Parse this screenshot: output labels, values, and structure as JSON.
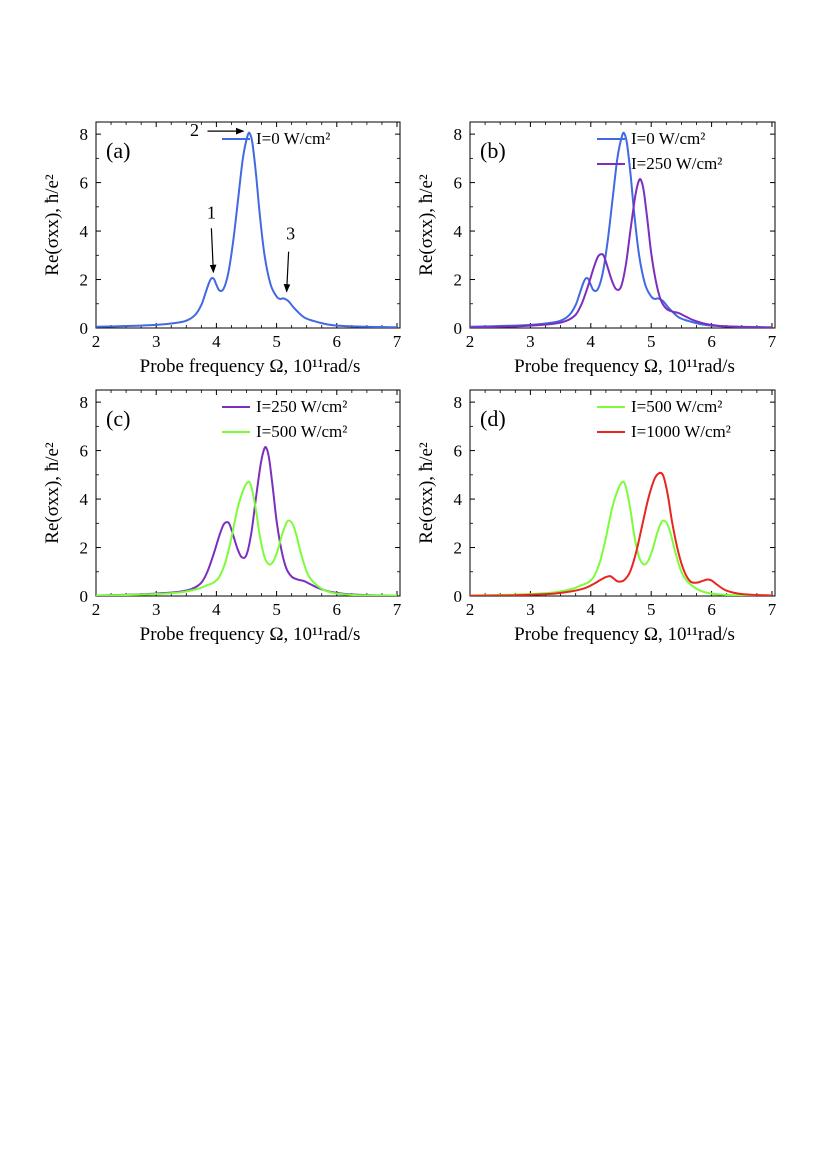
{
  "chart_data": [
    {
      "type": "line",
      "panel_label": "(a)",
      "xlabel": "Probe frequency Ω,  10¹¹rad/s",
      "ylabel": "Re(σxx),  ħ/e²",
      "xlim": [
        2,
        7.05
      ],
      "ylim": [
        0,
        8.5
      ],
      "xticks": [
        "2",
        "3",
        "4",
        "5",
        "6",
        "7"
      ],
      "yticks": [
        "0",
        "2",
        "4",
        "6",
        "8"
      ],
      "legend_position": "top-right",
      "series": [
        {
          "name": "I=0 W/cm²",
          "intensity": "0",
          "color": "#4169E1",
          "x": [
            2.0,
            2.5,
            3.0,
            3.3,
            3.5,
            3.65,
            3.75,
            3.82,
            3.88,
            3.92,
            3.96,
            4.0,
            4.05,
            4.12,
            4.2,
            4.28,
            4.36,
            4.44,
            4.52,
            4.56,
            4.6,
            4.66,
            4.72,
            4.8,
            4.9,
            5.0,
            5.06,
            5.1,
            5.14,
            5.2,
            5.3,
            5.45,
            5.6,
            5.8,
            6.0,
            6.5,
            7.0
          ],
          "y": [
            0.05,
            0.08,
            0.13,
            0.2,
            0.3,
            0.55,
            0.95,
            1.45,
            1.88,
            2.05,
            2.02,
            1.78,
            1.55,
            1.62,
            2.3,
            3.6,
            5.3,
            7.0,
            7.95,
            8.0,
            7.6,
            6.3,
            4.7,
            3.0,
            1.8,
            1.3,
            1.2,
            1.22,
            1.2,
            1.1,
            0.8,
            0.45,
            0.3,
            0.17,
            0.1,
            0.05,
            0.03
          ]
        }
      ],
      "annotations": [
        {
          "text": "1",
          "x": 3.95,
          "y": 2.05
        },
        {
          "text": "2",
          "x": 4.55,
          "y": 8.0
        },
        {
          "text": "3",
          "x": 5.15,
          "y": 1.25
        }
      ]
    },
    {
      "type": "line",
      "panel_label": "(b)",
      "xlabel": "Probe frequency Ω,  10¹¹rad/s",
      "ylabel": "Re(σxx),  ħ/e²",
      "xlim": [
        2,
        7.05
      ],
      "ylim": [
        0,
        8.5
      ],
      "xticks": [
        "2",
        "3",
        "4",
        "5",
        "6",
        "7"
      ],
      "yticks": [
        "0",
        "2",
        "4",
        "6",
        "8"
      ],
      "legend_position": "top-right",
      "series": [
        {
          "name": "I=0 W/cm²",
          "intensity": "0",
          "color": "#4169E1",
          "x": [
            2.0,
            2.5,
            3.0,
            3.3,
            3.5,
            3.65,
            3.75,
            3.82,
            3.88,
            3.92,
            3.96,
            4.0,
            4.05,
            4.12,
            4.2,
            4.28,
            4.36,
            4.44,
            4.52,
            4.56,
            4.6,
            4.66,
            4.72,
            4.8,
            4.9,
            5.0,
            5.06,
            5.1,
            5.14,
            5.2,
            5.3,
            5.45,
            5.6,
            5.8,
            6.0,
            6.5,
            7.0
          ],
          "y": [
            0.05,
            0.08,
            0.13,
            0.2,
            0.3,
            0.55,
            0.95,
            1.45,
            1.88,
            2.05,
            2.02,
            1.78,
            1.55,
            1.62,
            2.3,
            3.6,
            5.3,
            7.0,
            7.95,
            8.0,
            7.6,
            6.3,
            4.7,
            3.0,
            1.8,
            1.3,
            1.2,
            1.22,
            1.2,
            1.1,
            0.8,
            0.45,
            0.3,
            0.17,
            0.1,
            0.05,
            0.03
          ]
        },
        {
          "name": "I=250 W/cm²",
          "intensity": "250",
          "color": "#7B2FBE",
          "x": [
            2.0,
            2.5,
            3.0,
            3.4,
            3.6,
            3.75,
            3.85,
            3.95,
            4.05,
            4.12,
            4.18,
            4.22,
            4.28,
            4.35,
            4.42,
            4.5,
            4.58,
            4.66,
            4.74,
            4.8,
            4.84,
            4.88,
            4.94,
            5.0,
            5.08,
            5.16,
            5.25,
            5.35,
            5.45,
            5.55,
            5.7,
            5.9,
            6.2,
            6.6,
            7.0
          ],
          "y": [
            0.02,
            0.05,
            0.1,
            0.18,
            0.3,
            0.55,
            1.0,
            1.7,
            2.5,
            2.95,
            3.05,
            2.95,
            2.5,
            1.95,
            1.6,
            1.7,
            2.6,
            4.1,
            5.5,
            6.1,
            6.05,
            5.6,
            4.4,
            3.1,
            1.9,
            1.15,
            0.8,
            0.68,
            0.62,
            0.5,
            0.32,
            0.17,
            0.07,
            0.03,
            0.02
          ]
        }
      ]
    },
    {
      "type": "line",
      "panel_label": "(c)",
      "xlabel": "Probe frequency Ω,  10¹¹rad/s",
      "ylabel": "Re(σxx),  ħ/e²",
      "xlim": [
        2,
        7.05
      ],
      "ylim": [
        0,
        8.5
      ],
      "xticks": [
        "2",
        "3",
        "4",
        "5",
        "6",
        "7"
      ],
      "yticks": [
        "0",
        "2",
        "4",
        "6",
        "8"
      ],
      "legend_position": "top-right",
      "series": [
        {
          "name": "I=250 W/cm²",
          "intensity": "250",
          "color": "#7B2FBE",
          "x": [
            2.0,
            2.5,
            3.0,
            3.4,
            3.6,
            3.75,
            3.85,
            3.95,
            4.05,
            4.12,
            4.18,
            4.22,
            4.28,
            4.35,
            4.42,
            4.5,
            4.58,
            4.66,
            4.74,
            4.8,
            4.84,
            4.88,
            4.94,
            5.0,
            5.08,
            5.16,
            5.25,
            5.35,
            5.45,
            5.55,
            5.7,
            5.9,
            6.2,
            6.6,
            7.0
          ],
          "y": [
            0.02,
            0.05,
            0.1,
            0.18,
            0.3,
            0.55,
            1.0,
            1.7,
            2.5,
            2.95,
            3.05,
            2.95,
            2.5,
            1.95,
            1.6,
            1.7,
            2.6,
            4.1,
            5.5,
            6.1,
            6.05,
            5.6,
            4.4,
            3.1,
            1.9,
            1.15,
            0.8,
            0.68,
            0.62,
            0.5,
            0.32,
            0.17,
            0.07,
            0.03,
            0.02
          ]
        },
        {
          "name": "I=500 W/cm²",
          "intensity": "500",
          "color": "#7CFC3A",
          "x": [
            2.0,
            2.5,
            3.0,
            3.4,
            3.7,
            3.85,
            3.95,
            4.05,
            4.15,
            4.25,
            4.35,
            4.45,
            4.52,
            4.56,
            4.6,
            4.66,
            4.72,
            4.8,
            4.88,
            4.95,
            5.02,
            5.1,
            5.17,
            5.22,
            5.27,
            5.33,
            5.4,
            5.5,
            5.6,
            5.75,
            5.9,
            6.1,
            6.4,
            7.0
          ],
          "y": [
            0.02,
            0.04,
            0.08,
            0.15,
            0.3,
            0.45,
            0.55,
            0.8,
            1.4,
            2.4,
            3.6,
            4.4,
            4.7,
            4.65,
            4.3,
            3.5,
            2.5,
            1.6,
            1.3,
            1.45,
            1.9,
            2.6,
            3.05,
            3.1,
            2.95,
            2.5,
            1.8,
            1.0,
            0.6,
            0.3,
            0.15,
            0.07,
            0.03,
            0.02
          ]
        }
      ]
    },
    {
      "type": "line",
      "panel_label": "(d)",
      "xlabel": "Probe frequency Ω,  10¹¹rad/s",
      "ylabel": "Re(σxx),  ħ/e²",
      "xlim": [
        2,
        7.05
      ],
      "ylim": [
        0,
        8.5
      ],
      "xticks": [
        "2",
        "3",
        "4",
        "5",
        "6",
        "7"
      ],
      "yticks": [
        "0",
        "2",
        "4",
        "6",
        "8"
      ],
      "legend_position": "top-right",
      "series": [
        {
          "name": "I=500 W/cm²",
          "intensity": "500",
          "color": "#7CFC3A",
          "x": [
            2.0,
            2.5,
            3.0,
            3.4,
            3.7,
            3.85,
            3.95,
            4.05,
            4.15,
            4.25,
            4.35,
            4.45,
            4.52,
            4.56,
            4.6,
            4.66,
            4.72,
            4.8,
            4.88,
            4.95,
            5.02,
            5.1,
            5.17,
            5.22,
            5.27,
            5.33,
            5.4,
            5.5,
            5.6,
            5.75,
            5.9,
            6.1,
            6.4,
            7.0
          ],
          "y": [
            0.02,
            0.04,
            0.08,
            0.15,
            0.3,
            0.45,
            0.55,
            0.8,
            1.4,
            2.4,
            3.6,
            4.4,
            4.7,
            4.65,
            4.3,
            3.5,
            2.5,
            1.6,
            1.3,
            1.45,
            1.9,
            2.6,
            3.05,
            3.1,
            2.95,
            2.5,
            1.8,
            1.0,
            0.6,
            0.3,
            0.15,
            0.07,
            0.03,
            0.02
          ]
        },
        {
          "name": "I=1000 W/cm²",
          "intensity": "1000",
          "color": "#E8251F",
          "x": [
            2.0,
            2.6,
            3.0,
            3.4,
            3.7,
            3.9,
            4.05,
            4.15,
            4.25,
            4.32,
            4.38,
            4.45,
            4.55,
            4.65,
            4.75,
            4.85,
            4.95,
            5.05,
            5.12,
            5.18,
            5.22,
            5.28,
            5.35,
            5.45,
            5.55,
            5.65,
            5.75,
            5.85,
            5.93,
            6.0,
            6.1,
            6.25,
            6.5,
            7.0
          ],
          "y": [
            0.01,
            0.02,
            0.05,
            0.1,
            0.2,
            0.32,
            0.5,
            0.65,
            0.78,
            0.82,
            0.72,
            0.6,
            0.65,
            1.0,
            1.8,
            2.9,
            4.0,
            4.8,
            5.05,
            5.05,
            4.8,
            4.1,
            3.0,
            1.8,
            1.0,
            0.6,
            0.55,
            0.62,
            0.68,
            0.64,
            0.45,
            0.22,
            0.08,
            0.02
          ]
        }
      ]
    }
  ]
}
